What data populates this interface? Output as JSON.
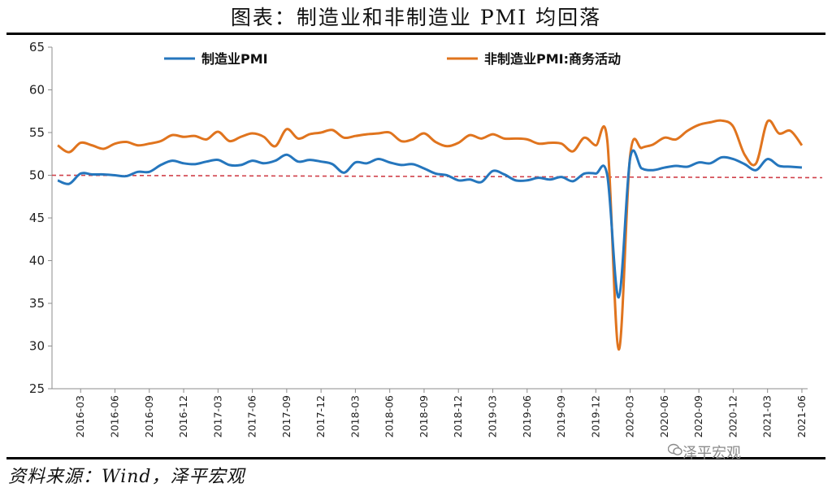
{
  "title": "图表：制造业和非制造业 PMI 均回落",
  "source": "资料来源：Wind，泽平宏观",
  "watermark": "泽平宏观",
  "chart_data": {
    "type": "line",
    "ylim": [
      25,
      65
    ],
    "yticks": [
      25,
      30,
      35,
      40,
      45,
      50,
      55,
      60,
      65
    ],
    "xtick_labels": [
      "2016-03",
      "2016-06",
      "2016-09",
      "2016-12",
      "2017-03",
      "2017-06",
      "2017-09",
      "2017-12",
      "2018-03",
      "2018-06",
      "2018-09",
      "2018-12",
      "2019-03",
      "2019-06",
      "2019-09",
      "2019-12",
      "2020-03",
      "2020-06",
      "2020-09",
      "2020-12",
      "2021-03",
      "2021-06"
    ],
    "reference_line": {
      "value": 50,
      "color": "#d0404a",
      "style": "dashed"
    },
    "legend_position": "top",
    "x": [
      "2016-01",
      "2016-02",
      "2016-03",
      "2016-04",
      "2016-05",
      "2016-06",
      "2016-07",
      "2016-08",
      "2016-09",
      "2016-10",
      "2016-11",
      "2016-12",
      "2017-01",
      "2017-02",
      "2017-03",
      "2017-04",
      "2017-05",
      "2017-06",
      "2017-07",
      "2017-08",
      "2017-09",
      "2017-10",
      "2017-11",
      "2017-12",
      "2018-01",
      "2018-02",
      "2018-03",
      "2018-04",
      "2018-05",
      "2018-06",
      "2018-07",
      "2018-08",
      "2018-09",
      "2018-10",
      "2018-11",
      "2018-12",
      "2019-01",
      "2019-02",
      "2019-03",
      "2019-04",
      "2019-05",
      "2019-06",
      "2019-07",
      "2019-08",
      "2019-09",
      "2019-10",
      "2019-11",
      "2019-12",
      "2020-01",
      "2020-02",
      "2020-03",
      "2020-04",
      "2020-05",
      "2020-06",
      "2020-07",
      "2020-08",
      "2020-09",
      "2020-10",
      "2020-11",
      "2020-12",
      "2021-01",
      "2021-02",
      "2021-03",
      "2021-04",
      "2021-05",
      "2021-06"
    ],
    "series": [
      {
        "name": "制造业PMI",
        "color": "#2576bd",
        "values": [
          49.4,
          49.0,
          50.2,
          50.1,
          50.1,
          50.0,
          49.9,
          50.4,
          50.4,
          51.2,
          51.7,
          51.4,
          51.3,
          51.6,
          51.8,
          51.2,
          51.2,
          51.7,
          51.4,
          51.7,
          52.4,
          51.6,
          51.8,
          51.6,
          51.3,
          50.3,
          51.5,
          51.4,
          51.9,
          51.5,
          51.2,
          51.3,
          50.8,
          50.2,
          50.0,
          49.4,
          49.5,
          49.2,
          50.5,
          50.1,
          49.4,
          49.4,
          49.7,
          49.5,
          49.8,
          49.3,
          50.2,
          50.2,
          50.0,
          35.7,
          52.0,
          50.8,
          50.6,
          50.9,
          51.1,
          51.0,
          51.5,
          51.4,
          52.1,
          51.9,
          51.3,
          50.6,
          51.9,
          51.1,
          51.0,
          50.9
        ]
      },
      {
        "name": "非制造业PMI:商务活动",
        "color": "#e0741e",
        "values": [
          53.5,
          52.7,
          53.8,
          53.5,
          53.1,
          53.7,
          53.9,
          53.5,
          53.7,
          54.0,
          54.7,
          54.5,
          54.6,
          54.2,
          55.1,
          54.0,
          54.5,
          54.9,
          54.5,
          53.4,
          55.4,
          54.3,
          54.8,
          55.0,
          55.3,
          54.4,
          54.6,
          54.8,
          54.9,
          55.0,
          54.0,
          54.2,
          54.9,
          53.9,
          53.4,
          53.8,
          54.7,
          54.3,
          54.8,
          54.3,
          54.3,
          54.2,
          53.7,
          53.8,
          53.7,
          52.8,
          54.4,
          53.5,
          54.1,
          29.6,
          52.3,
          53.2,
          53.6,
          54.4,
          54.2,
          55.2,
          55.9,
          56.2,
          56.4,
          55.7,
          52.4,
          51.4,
          56.3,
          54.9,
          55.2,
          53.5
        ]
      }
    ]
  }
}
